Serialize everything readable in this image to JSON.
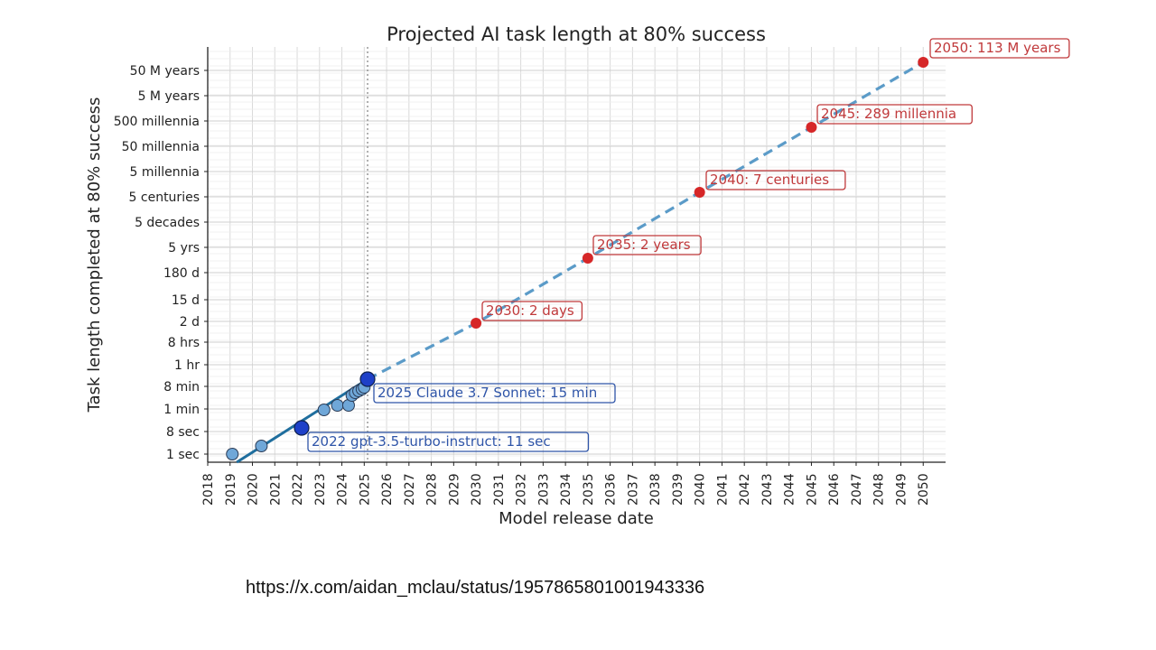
{
  "slide": {
    "source_url": "https://x.com/aidan_mclau/status/1957865801001943336"
  },
  "chart_data": {
    "type": "line",
    "title": "Projected AI task length at 80% success",
    "xlabel": "Model release date",
    "ylabel": "Task length completed at 80% success",
    "xlim": [
      2018,
      2051
    ],
    "x_ticks": [
      "2018",
      "2019",
      "2020",
      "2021",
      "2022",
      "2023",
      "2024",
      "2025",
      "2026",
      "2027",
      "2028",
      "2029",
      "2030",
      "2031",
      "2032",
      "2033",
      "2034",
      "2035",
      "2036",
      "2037",
      "2038",
      "2039",
      "2040",
      "2041",
      "2042",
      "2043",
      "2044",
      "2045",
      "2046",
      "2047",
      "2048",
      "2049",
      "2050"
    ],
    "y_scale": "log",
    "y_ticks": [
      "1 sec",
      "8 sec",
      "1 min",
      "8 min",
      "1 hr",
      "8 hrs",
      "2 d",
      "15 d",
      "180 d",
      "5 yrs",
      "5 decades",
      "5 centuries",
      "5 millennia",
      "50 millennia",
      "500 millennia",
      "5 M years",
      "50 M years"
    ],
    "grid": true,
    "release_marker": {
      "x": 2025.15,
      "style": "dotted"
    },
    "series": [
      {
        "style": "solid",
        "color": "#1f6e9e",
        "x": [
          2019.1,
          2025.15
        ],
        "y": [
          "1 sec",
          "15 min"
        ]
      },
      {
        "style": "dashed",
        "color": "#5b9bc8",
        "x": [
          2025.15,
          2030,
          2035,
          2040,
          2045,
          2050
        ],
        "y": [
          "15 min",
          "2 days",
          "2 years",
          "7 centuries",
          "289 millennia",
          "113 M years"
        ]
      }
    ],
    "observed_points": {
      "color": "#6fa7d8",
      "x": [
        2019.1,
        2020.4,
        2023.2,
        2023.8,
        2024.3,
        2024.45,
        2024.6,
        2024.75,
        2024.9,
        2025.0
      ],
      "y": [
        "1 sec",
        "~4 sec",
        "~1 min",
        "~2 min",
        "~2 min",
        "~4 min",
        "~5 min",
        "~6 min",
        "~7 min",
        "~8 min"
      ]
    },
    "highlighted_points": [
      {
        "x": 2022.2,
        "y": "11 sec",
        "label": "2022 gpt-3.5-turbo-instruct: 11 sec",
        "color": "#1e40c8"
      },
      {
        "x": 2025.15,
        "y": "15 min",
        "label": "2025 Claude 3.7 Sonnet: 15 min",
        "color": "#1e40c8"
      }
    ],
    "projections": [
      {
        "x": 2030,
        "label": "2030: 2 days",
        "color": "#d62728"
      },
      {
        "x": 2035,
        "label": "2035: 2 years",
        "color": "#d62728"
      },
      {
        "x": 2040,
        "label": "2040: 7 centuries",
        "color": "#d62728"
      },
      {
        "x": 2045,
        "label": "2045: 289 millennia",
        "color": "#d62728"
      },
      {
        "x": 2050,
        "label": "2050: 113 M years",
        "color": "#d62728"
      }
    ]
  }
}
